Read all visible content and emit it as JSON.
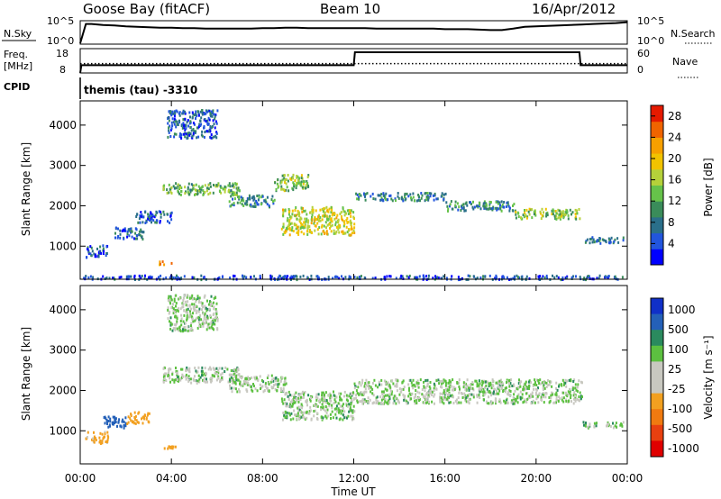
{
  "header": {
    "station": "Goose Bay (fitACF)",
    "beam": "Beam 10",
    "date": "16/Apr/2012"
  },
  "panels": {
    "noise": {
      "left_label": "N.Sky",
      "right_label": "N.Search",
      "ticks_left": [
        "10^5",
        "10^0"
      ],
      "ticks_right": [
        "10^5",
        "10^0"
      ]
    },
    "freq": {
      "left_label_1": "Freq.",
      "left_label_2": "[MHz]",
      "right_label": "Nave",
      "ticks_left": [
        "18",
        "8"
      ],
      "ticks_right": [
        "60",
        "0"
      ]
    },
    "cpid": {
      "left_label": "CPID",
      "text": "themis (tau) -3310"
    }
  },
  "colors": {
    "power_scale": [
      "#0000ff",
      "#2255dd",
      "#2a6f8a",
      "#3a8c5a",
      "#66c24a",
      "#b5d13a",
      "#f2c300",
      "#f7a000",
      "#f06400",
      "#e51a00"
    ],
    "velocity_scale": [
      "#1030c8",
      "#2460b8",
      "#2a8a5e",
      "#5cc040",
      "#c8c8c0",
      "#c8c8c0",
      "#f2a020",
      "#f07a10",
      "#e84010",
      "#e00000"
    ]
  },
  "chart_data": [
    {
      "type": "line",
      "panel": "noise",
      "x_label": "",
      "y_label": "N.Sky",
      "xlim": [
        0,
        24
      ],
      "series": [
        {
          "name": "N.Sky",
          "x": [
            0,
            0.25,
            0.5,
            1,
            1.5,
            2,
            2.5,
            3,
            3.5,
            4,
            4.5,
            5,
            5.5,
            6,
            6.5,
            7,
            7.5,
            8,
            8.5,
            9,
            9.5,
            10,
            10.5,
            11,
            11.5,
            12,
            12.5,
            13,
            13.5,
            14,
            14.5,
            15,
            15.5,
            16,
            16.5,
            17,
            17.5,
            18,
            18.5,
            19,
            19.5,
            20,
            20.5,
            21,
            21.5,
            22,
            22.5,
            23,
            23.5,
            24
          ],
          "y": [
            0.2,
            4.3,
            4.3,
            4.1,
            4.0,
            3.8,
            3.7,
            3.6,
            3.5,
            3.5,
            3.4,
            3.4,
            3.3,
            3.3,
            3.3,
            3.3,
            3.3,
            3.4,
            3.4,
            3.5,
            3.5,
            3.4,
            3.4,
            3.4,
            3.4,
            3.4,
            3.4,
            3.3,
            3.3,
            3.3,
            3.3,
            3.3,
            3.3,
            3.2,
            3.2,
            3.2,
            3.1,
            3.0,
            3.0,
            3.3,
            3.7,
            3.8,
            3.9,
            4.0,
            4.1,
            4.2,
            4.3,
            4.4,
            4.5,
            4.7
          ]
        }
      ]
    },
    {
      "type": "line",
      "panel": "freq",
      "x_label": "",
      "y_label": "Freq. [MHz]",
      "xlim": [
        0,
        24
      ],
      "series": [
        {
          "name": "Freq",
          "x": [
            0,
            0.05,
            12,
            12.05,
            21.9,
            21.95,
            24
          ],
          "y": [
            8,
            11.2,
            11.2,
            16.5,
            16.5,
            11.2,
            11.2
          ]
        },
        {
          "name": "Nave",
          "x": [
            0,
            24
          ],
          "y": [
            23,
            23
          ]
        }
      ]
    },
    {
      "type": "heatmap",
      "panel": "power",
      "x_label": "Time UT",
      "y_label": "Slant Range [km]",
      "xlim": [
        0,
        24
      ],
      "ylim": [
        180,
        4600
      ],
      "x_ticks": [
        "00:00",
        "04:00",
        "08:00",
        "12:00",
        "16:00",
        "20:00",
        "00:00"
      ],
      "y_ticks": [
        "1000",
        "2000",
        "3000",
        "4000"
      ],
      "colorbar": {
        "label": "Power [dB]",
        "ticks": [
          "28",
          "24",
          "20",
          "16",
          "12",
          "8",
          "4"
        ],
        "range": [
          0,
          30
        ]
      },
      "regions": [
        {
          "t": [
            0.2,
            1.2
          ],
          "r": [
            750,
            1050
          ],
          "val": 5
        },
        {
          "t": [
            1.5,
            2.8
          ],
          "r": [
            1200,
            1500
          ],
          "val": 7
        },
        {
          "t": [
            2.4,
            4.0
          ],
          "r": [
            1600,
            1900
          ],
          "val": 6
        },
        {
          "t": [
            3.4,
            4.0
          ],
          "r": [
            570,
            650
          ],
          "val": 22
        },
        {
          "t": [
            3.6,
            7.0
          ],
          "r": [
            2300,
            2600
          ],
          "val": 13
        },
        {
          "t": [
            3.8,
            6.0
          ],
          "r": [
            3700,
            4400
          ],
          "val": 6
        },
        {
          "t": [
            6.5,
            8.5
          ],
          "r": [
            2000,
            2300
          ],
          "val": 9
        },
        {
          "t": [
            8.5,
            10.0
          ],
          "r": [
            2400,
            2800
          ],
          "val": 14
        },
        {
          "t": [
            8.8,
            12.0
          ],
          "r": [
            1300,
            2000
          ],
          "val": 17
        },
        {
          "t": [
            12.0,
            16.0
          ],
          "r": [
            2150,
            2350
          ],
          "val": 8
        },
        {
          "t": [
            16.0,
            19.0
          ],
          "r": [
            1900,
            2150
          ],
          "val": 9
        },
        {
          "t": [
            19.0,
            21.9
          ],
          "r": [
            1700,
            1950
          ],
          "val": 14
        },
        {
          "t": [
            22.0,
            23.8
          ],
          "r": [
            1100,
            1250
          ],
          "val": 8
        },
        {
          "t": [
            0,
            24.0
          ],
          "r": [
            200,
            300
          ],
          "val": 5
        }
      ]
    },
    {
      "type": "heatmap",
      "panel": "velocity",
      "x_label": "Time UT",
      "y_label": "Slant Range [km]",
      "xlim": [
        0,
        24
      ],
      "ylim": [
        180,
        4600
      ],
      "x_ticks": [
        "00:00",
        "04:00",
        "08:00",
        "12:00",
        "16:00",
        "20:00",
        "00:00"
      ],
      "y_ticks": [
        "1000",
        "2000",
        "3000",
        "4000"
      ],
      "colorbar": {
        "label": "Velocity [m s⁻¹]",
        "ticks": [
          "1000",
          "500",
          "100",
          "25",
          "-25",
          "-100",
          "-500",
          "-1000"
        ],
        "range": [
          -1000,
          1000
        ]
      },
      "regions": [
        {
          "t": [
            0.2,
            1.2
          ],
          "r": [
            700,
            1000
          ],
          "val": -120
        },
        {
          "t": [
            1.0,
            2.0
          ],
          "r": [
            1100,
            1400
          ],
          "val": 150
        },
        {
          "t": [
            2.0,
            3.0
          ],
          "r": [
            1200,
            1500
          ],
          "val": -150
        },
        {
          "t": [
            3.4,
            4.2
          ],
          "r": [
            550,
            650
          ],
          "val": -200
        },
        {
          "t": [
            3.6,
            7.0
          ],
          "r": [
            2200,
            2600
          ],
          "val": 0
        },
        {
          "t": [
            3.8,
            6.0
          ],
          "r": [
            3500,
            4400
          ],
          "val": 0
        },
        {
          "t": [
            6.5,
            9.0
          ],
          "r": [
            2000,
            2400
          ],
          "val": 0
        },
        {
          "t": [
            8.8,
            12.0
          ],
          "r": [
            1300,
            2000
          ],
          "val": 0
        },
        {
          "t": [
            12.0,
            22.0
          ],
          "r": [
            1700,
            2300
          ],
          "val": 0
        },
        {
          "t": [
            22.0,
            23.8
          ],
          "r": [
            1100,
            1250
          ],
          "val": 0
        }
      ]
    }
  ],
  "axes": {
    "x_ticks": [
      "00:00",
      "04:00",
      "08:00",
      "12:00",
      "16:00",
      "20:00",
      "00:00"
    ],
    "x_label": "Time UT",
    "y_label_top": "Slant Range [km]",
    "y_label_bottom": "Slant Range [km]",
    "y_ticks": [
      "1000",
      "2000",
      "3000",
      "4000"
    ],
    "power_label": "Power [dB]",
    "power_ticks": [
      "28",
      "24",
      "20",
      "16",
      "12",
      "8",
      "4"
    ],
    "velocity_label": "Velocity [m s⁻¹]",
    "velocity_ticks": [
      "1000",
      "500",
      "100",
      "25",
      "-25",
      "-100",
      "-500",
      "-1000"
    ]
  }
}
